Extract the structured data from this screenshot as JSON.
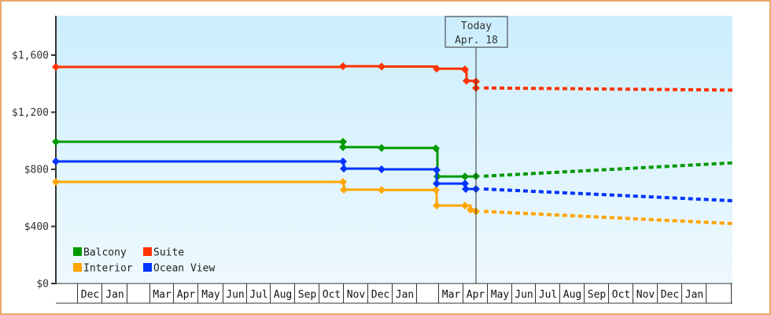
{
  "chart_data": {
    "type": "line",
    "title": "",
    "xlabel": "",
    "ylabel": "",
    "ylim": [
      0,
      1600
    ],
    "y_ticks": [
      "$0",
      "$400",
      "$800",
      "$1,200",
      "$1,600"
    ],
    "y_tick_values": [
      0,
      400,
      800,
      1200,
      1600
    ],
    "x_tick_labels": [
      "",
      "Dec",
      "Jan",
      "",
      "Mar",
      "Apr",
      "May",
      "Jun",
      "Jul",
      "Aug",
      "Sep",
      "Oct",
      "Nov",
      "Dec",
      "Jan",
      "",
      "Mar",
      "Apr",
      "May",
      "Jun",
      "Jul",
      "Aug",
      "Sep",
      "Oct",
      "Nov",
      "Dec",
      "Jan",
      ""
    ],
    "grid": false,
    "legend_position": "lower-left",
    "today_marker": {
      "label_line1": "Today",
      "label_line2": "Apr. 18"
    },
    "series": [
      {
        "name": "Balcony",
        "color": "#009900",
        "historical": [
          {
            "x": "Nov (yr1)",
            "y": 993
          },
          {
            "x": "Oct 31",
            "y": 993
          },
          {
            "x": "Nov 1",
            "y": 955
          },
          {
            "x": "Dec",
            "y": 950
          },
          {
            "x": "Feb",
            "y": 947
          },
          {
            "x": "Feb end",
            "y": 750
          },
          {
            "x": "Apr 1",
            "y": 750
          },
          {
            "x": "Apr 18",
            "y": 752
          }
        ],
        "forecast": [
          {
            "x": "Apr 18",
            "y": 752
          },
          {
            "x": "Jan",
            "y": 845
          }
        ]
      },
      {
        "name": "Suite",
        "color": "#ff3300",
        "historical": [
          {
            "x": "Nov (yr1)",
            "y": 1517
          },
          {
            "x": "Oct 31",
            "y": 1522
          },
          {
            "x": "Dec",
            "y": 1520
          },
          {
            "x": "Feb",
            "y": 1505
          },
          {
            "x": "Apr 1",
            "y": 1500
          },
          {
            "x": "Apr 2",
            "y": 1420
          },
          {
            "x": "Apr 18",
            "y": 1415
          },
          {
            "x": "Apr 18b",
            "y": 1370
          }
        ],
        "forecast": [
          {
            "x": "Apr 18",
            "y": 1370
          },
          {
            "x": "Jan",
            "y": 1355
          }
        ]
      },
      {
        "name": "Interior",
        "color": "#ffa500",
        "historical": [
          {
            "x": "Nov (yr1)",
            "y": 712
          },
          {
            "x": "Oct 31",
            "y": 712
          },
          {
            "x": "Nov 1",
            "y": 657
          },
          {
            "x": "Dec",
            "y": 655
          },
          {
            "x": "Feb",
            "y": 655
          },
          {
            "x": "Feb end",
            "y": 546
          },
          {
            "x": "Apr 1",
            "y": 546
          },
          {
            "x": "Apr 2",
            "y": 517
          },
          {
            "x": "Apr 18",
            "y": 505
          }
        ],
        "forecast": [
          {
            "x": "Apr 18",
            "y": 505
          },
          {
            "x": "Jan",
            "y": 420
          }
        ]
      },
      {
        "name": "Ocean View",
        "color": "#0033ff",
        "historical": [
          {
            "x": "Nov (yr1)",
            "y": 855
          },
          {
            "x": "Oct 31",
            "y": 855
          },
          {
            "x": "Nov 1",
            "y": 805
          },
          {
            "x": "Dec",
            "y": 800
          },
          {
            "x": "Feb",
            "y": 795
          },
          {
            "x": "Feb end",
            "y": 700
          },
          {
            "x": "Apr 1",
            "y": 700
          },
          {
            "x": "Apr 2",
            "y": 662
          },
          {
            "x": "Apr 18",
            "y": 662
          }
        ],
        "forecast": [
          {
            "x": "Apr 18",
            "y": 662
          },
          {
            "x": "Jan",
            "y": 580
          }
        ]
      }
    ]
  },
  "legend": [
    {
      "label": "Balcony",
      "color": "#009900"
    },
    {
      "label": "Suite",
      "color": "#ff3300"
    },
    {
      "label": "Interior",
      "color": "#ffa500"
    },
    {
      "label": "Ocean View",
      "color": "#0033ff"
    }
  ],
  "today": {
    "line1": "Today",
    "line2": "Apr. 18"
  }
}
